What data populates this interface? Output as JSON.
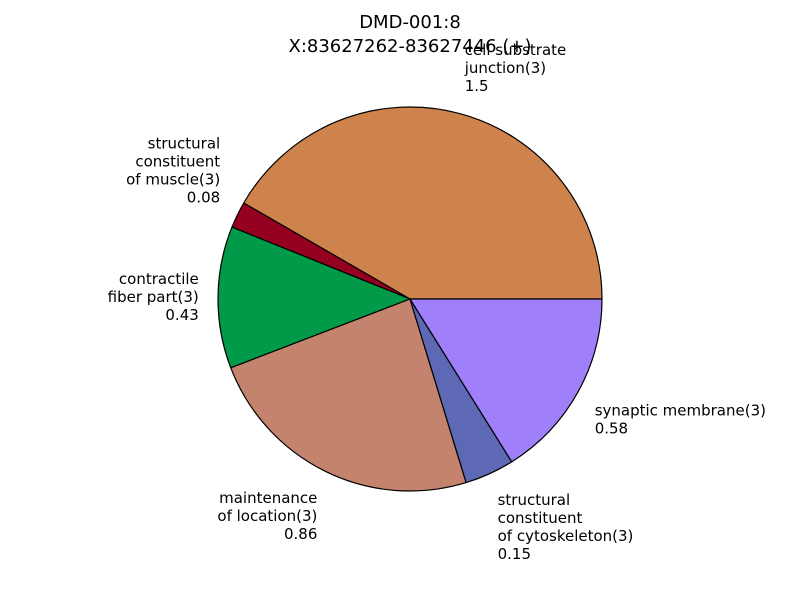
{
  "chart_data": {
    "type": "pie",
    "title_lines": [
      "DMD-001:8",
      "X:83627262-83627446 (+)"
    ],
    "slices": [
      {
        "label_lines": [
          "cell substrate",
          "junction(3)"
        ],
        "value_text": "1.5",
        "value": 1.5,
        "color": "#cd834b"
      },
      {
        "label_lines": [
          "structural",
          "constituent",
          "of muscle(3)"
        ],
        "value_text": "0.08",
        "value": 0.08,
        "color": "#960020"
      },
      {
        "label_lines": [
          "contractile",
          "fiber part(3)"
        ],
        "value_text": "0.43",
        "value": 0.43,
        "color": "#009a48"
      },
      {
        "label_lines": [
          "maintenance",
          "of location(3)"
        ],
        "value_text": "0.86",
        "value": 0.86,
        "color": "#c3836d"
      },
      {
        "label_lines": [
          "structural",
          "constituent",
          "of cytoskeleton(3)"
        ],
        "value_text": "0.15",
        "value": 0.15,
        "color": "#5e69b6"
      },
      {
        "label_lines": [
          "synaptic membrane(3)"
        ],
        "value_text": "0.58",
        "value": 0.58,
        "color": "#a080fa"
      }
    ],
    "start_angle": 0,
    "direction": "counterclockwise",
    "edge_color": "#000000",
    "legend": "none"
  }
}
